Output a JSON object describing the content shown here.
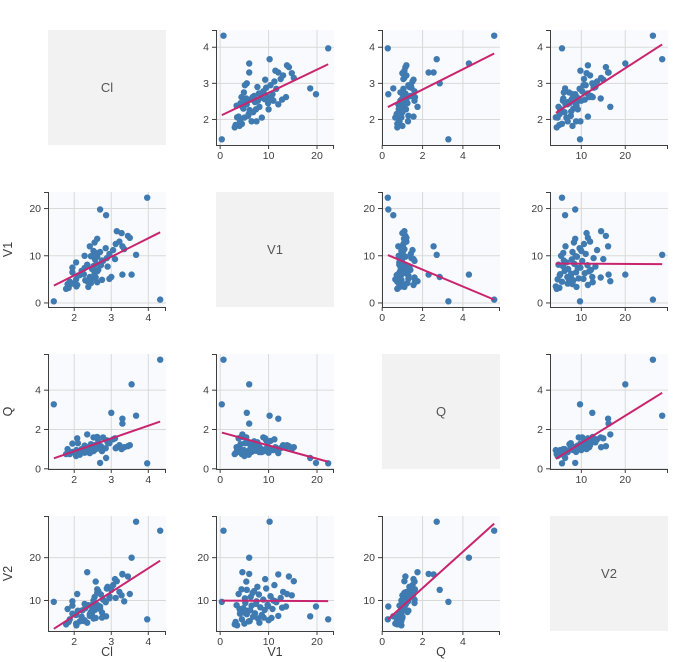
{
  "chart_data": {
    "type": "scatter",
    "subtype": "scatter_matrix",
    "title": "",
    "variables": [
      "Cl",
      "V1",
      "Q",
      "V2"
    ],
    "diagonal_labels": [
      "Cl",
      "V1",
      "Q",
      "V2"
    ],
    "bottom_axis_labels": [
      "Cl",
      "V1",
      "Q"
    ],
    "left_axis_labels": [
      "V1",
      "Q",
      "V2"
    ],
    "axis_ticks": {
      "Cl": [
        2,
        3,
        4
      ],
      "V1": [
        0,
        10,
        20
      ],
      "Q": [
        0,
        2,
        4
      ],
      "V2": [
        10,
        20
      ]
    },
    "trend": "linear-regression",
    "grid": true,
    "columns": [
      "Cl",
      "V1",
      "Q",
      "V2"
    ],
    "records": [
      [
        4.32,
        0.7,
        5.55,
        26.3
      ],
      [
        3.97,
        22.3,
        0.28,
        5.6
      ],
      [
        1.45,
        0.35,
        3.28,
        9.7
      ],
      [
        2.7,
        19.8,
        0.3,
        8.6
      ],
      [
        2.86,
        18.6,
        0.55,
        6.3
      ],
      [
        3.55,
        6.0,
        4.3,
        20.0
      ],
      [
        3.67,
        10.2,
        2.7,
        28.4
      ],
      [
        3.0,
        5.5,
        2.85,
        12.5
      ],
      [
        3.3,
        12.0,
        2.55,
        16.1
      ],
      [
        3.15,
        15.2,
        1.1,
        14.5
      ],
      [
        1.85,
        3.2,
        0.8,
        5.0
      ],
      [
        2.06,
        3.5,
        0.95,
        4.2
      ],
      [
        1.82,
        4.0,
        1.0,
        8.0
      ],
      [
        2.45,
        4.2,
        1.25,
        7.3
      ],
      [
        1.88,
        4.5,
        0.75,
        5.6
      ],
      [
        2.3,
        4.8,
        0.95,
        8.2
      ],
      [
        2.05,
        5.0,
        0.65,
        4.6
      ],
      [
        2.52,
        5.2,
        1.6,
        9.4
      ],
      [
        2.42,
        5.5,
        0.88,
        6.8
      ],
      [
        2.1,
        5.8,
        1.3,
        7.6
      ],
      [
        2.26,
        6.1,
        0.95,
        5.2
      ],
      [
        2.55,
        6.3,
        1.2,
        10.8
      ],
      [
        1.95,
        6.5,
        0.86,
        8.8
      ],
      [
        2.2,
        6.8,
        1.0,
        6.2
      ],
      [
        2.65,
        7.0,
        1.4,
        12.2
      ],
      [
        2.48,
        7.2,
        0.92,
        7.0
      ],
      [
        1.95,
        7.5,
        1.28,
        9.8
      ],
      [
        2.52,
        7.8,
        0.9,
        5.8
      ],
      [
        2.72,
        8.0,
        1.15,
        11.4
      ],
      [
        2.6,
        8.3,
        1.05,
        8.4
      ],
      [
        2.05,
        8.6,
        0.85,
        6.6
      ],
      [
        2.78,
        8.9,
        1.6,
        10.2
      ],
      [
        2.56,
        9.2,
        0.98,
        7.8
      ],
      [
        2.88,
        9.5,
        1.45,
        12.8
      ],
      [
        2.62,
        9.8,
        1.15,
        9.0
      ],
      [
        2.28,
        10.0,
        0.82,
        5.4
      ],
      [
        2.95,
        10.4,
        1.42,
        11.0
      ],
      [
        2.7,
        10.8,
        1.02,
        8.0
      ],
      [
        3.05,
        11.2,
        1.5,
        13.6
      ],
      [
        2.85,
        11.6,
        1.05,
        9.6
      ],
      [
        2.42,
        12.0,
        0.8,
        6.4
      ],
      [
        3.12,
        12.5,
        1.05,
        10.6
      ],
      [
        3.22,
        13.0,
        1.2,
        12.0
      ],
      [
        2.62,
        13.6,
        1.08,
        8.6
      ],
      [
        3.45,
        14.2,
        1.15,
        15.6
      ],
      [
        2.08,
        3.8,
        1.55,
        11.5
      ],
      [
        2.62,
        4.4,
        1.62,
        12.6
      ],
      [
        2.58,
        5.4,
        1.6,
        14.4
      ],
      [
        3.3,
        6.0,
        2.3,
        16.2
      ],
      [
        2.35,
        4.6,
        1.75,
        16.6
      ],
      [
        1.78,
        3.0,
        0.75,
        4.4
      ],
      [
        1.95,
        4.1,
        0.85,
        6.9
      ],
      [
        2.38,
        3.4,
        1.1,
        8.9
      ],
      [
        2.15,
        5.9,
        0.72,
        5.1
      ],
      [
        2.28,
        7.4,
        1.18,
        9.2
      ],
      [
        2.75,
        4.9,
        0.95,
        7.2
      ],
      [
        2.62,
        6.7,
        1.1,
        11.8
      ],
      [
        2.75,
        9.0,
        0.9,
        6.0
      ],
      [
        2.52,
        11.0,
        0.95,
        10.0
      ],
      [
        2.35,
        8.1,
        0.85,
        4.8
      ],
      [
        2.9,
        7.7,
        1.35,
        13.2
      ],
      [
        3.1,
        9.3,
        1.55,
        15.0
      ],
      [
        2.22,
        6.2,
        1.0,
        7.7
      ],
      [
        2.95,
        5.1,
        1.3,
        10.5
      ],
      [
        2.55,
        12.8,
        1.1,
        8.3
      ],
      [
        3.35,
        11.4,
        1.1,
        9.8
      ],
      [
        3.5,
        13.8,
        1.2,
        11.5
      ],
      [
        3.28,
        14.8,
        1.0,
        11.2
      ],
      [
        2.58,
        10.6,
        1.0,
        5.9
      ],
      [
        2.45,
        9.9,
        1.05,
        8.7
      ]
    ]
  },
  "style": {
    "point_color": "#3f7ab1",
    "trend_color": "#c9256f",
    "panel_bg": "#f9fafd",
    "diagonal_bg": "#f2f2f3",
    "grid_color": "#d9d9d9",
    "axis_color": "#3f3f3f",
    "tick_label_color": "#3d3d3d",
    "label_color": "#3d3d3d",
    "diagonal_label_color": "#555555"
  }
}
